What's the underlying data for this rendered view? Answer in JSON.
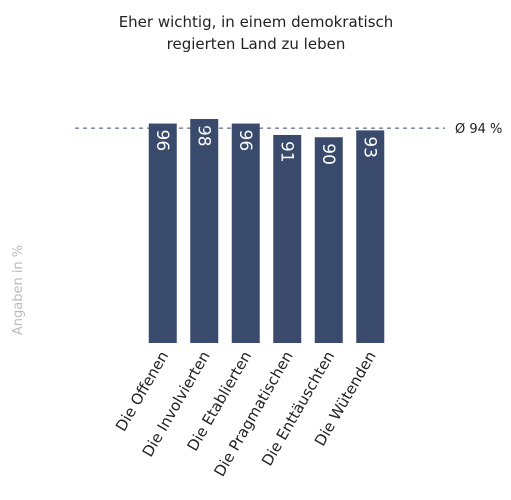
{
  "chart_data": {
    "type": "bar",
    "title": [
      "Eher wichtig, in einem demokratisch",
      "regierten Land zu leben"
    ],
    "y_label": "Angaben in %",
    "categories": [
      "Die Offenen",
      "Die Involvierten",
      "Die Etablierten",
      "Die Pragmatischen",
      "Die Enttäuschten",
      "Die Wütenden"
    ],
    "values": [
      96,
      98,
      96,
      91,
      90,
      93
    ],
    "color": "#394a6d",
    "ylim": [
      0,
      100
    ],
    "average": {
      "value": 94,
      "label": "Ø 94 %"
    }
  }
}
